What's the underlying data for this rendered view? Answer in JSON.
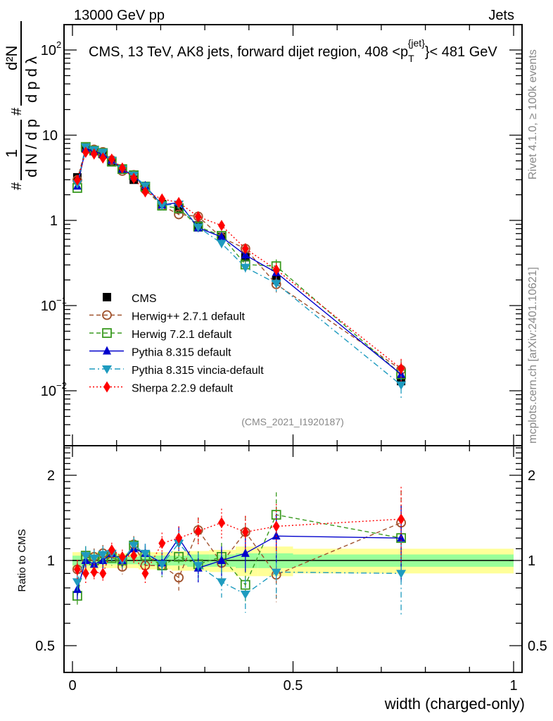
{
  "header": {
    "left": "13000 GeV pp",
    "right": "Jets"
  },
  "side_labels": {
    "rivet": "Rivet 4.1.0, ≥ 100k events",
    "mcplots": "mcplots.cern.ch [arXiv:2401.10621]"
  },
  "chart_data": {
    "type": "scatter",
    "title": "CMS, 13 TeV, AK8 jets, forward dijet region, 408 <p_T^{jet}< 481 GeV",
    "title_parts": {
      "main": "CMS, 13 TeV, AK8 jets, forward dijet region, 408 <p",
      "sub": "T",
      "sup": "{jet}",
      "tail": "}< 481 GeV"
    },
    "analysis_tag": "(CMS_2021_I1920187)",
    "xlabel": "width (charged-only)",
    "ylabel_upper": "1/# dN/dp_T # d²N/dp_T dλ",
    "ylabel_lower": "Ratio to CMS",
    "xlim": [
      -0.02,
      1.02
    ],
    "ylim_upper": [
      0.00226,
      200
    ],
    "ylim_lower": [
      0.4,
      2.54
    ],
    "y_scale": "log",
    "xticks": [
      "0",
      "0.5",
      "1"
    ],
    "yticks_upper": [
      "10²",
      "10",
      "1",
      "10⁻¹",
      "10⁻²"
    ],
    "yticks_lower": [
      "2",
      "1",
      "0.5"
    ],
    "x": [
      0.011,
      0.03,
      0.049,
      0.069,
      0.089,
      0.113,
      0.139,
      0.165,
      0.203,
      0.241,
      0.285,
      0.338,
      0.392,
      0.462,
      0.745
    ],
    "band_edges": [
      0.0,
      0.02,
      0.04,
      0.06,
      0.08,
      0.1,
      0.125,
      0.15,
      0.18,
      0.225,
      0.26,
      0.31,
      0.37,
      0.42,
      0.5,
      1.0
    ],
    "band_stat": [
      0.04,
      0.04,
      0.04,
      0.03,
      0.03,
      0.03,
      0.03,
      0.04,
      0.04,
      0.04,
      0.05,
      0.05,
      0.06,
      0.06,
      0.05
    ],
    "band_total": [
      0.07,
      0.08,
      0.07,
      0.06,
      0.06,
      0.06,
      0.06,
      0.07,
      0.07,
      0.08,
      0.08,
      0.09,
      0.12,
      0.12,
      0.1
    ],
    "legend_position": "middle-left",
    "series": [
      {
        "name": "CMS",
        "color": "#000000",
        "marker": "square",
        "line": "none",
        "values": [
          3.2,
          7.0,
          6.6,
          6.0,
          4.8,
          4.0,
          3.0,
          2.4,
          1.55,
          1.35,
          0.87,
          0.64,
          0.37,
          0.2,
          0.013
        ]
      },
      {
        "name": "Herwig++ 2.7.1 default",
        "color": "#a0522d",
        "marker": "circle-open",
        "line": "dashed",
        "ratio": [
          0.93,
          1.02,
          1.03,
          1.06,
          1.06,
          0.95,
          1.14,
          0.96,
          0.96,
          0.87,
          1.28,
          0.98,
          1.26,
          0.89,
          1.36
        ]
      },
      {
        "name": "Herwig 7.2.1 default",
        "color": "#3a9a20",
        "marker": "square-open",
        "line": "dashed",
        "ratio": [
          0.75,
          1.04,
          1.0,
          1.03,
          1.02,
          1.0,
          1.13,
          1.04,
          0.96,
          1.03,
          0.97,
          1.03,
          0.82,
          1.45,
          1.2
        ]
      },
      {
        "name": "Pythia 8.315 default",
        "color": "#0000cc",
        "marker": "triangle-up",
        "line": "solid",
        "ratio": [
          0.79,
          1.0,
          0.97,
          1.0,
          1.06,
          1.0,
          1.1,
          1.06,
          0.98,
          1.2,
          0.94,
          1.0,
          1.06,
          1.22,
          1.2
        ]
      },
      {
        "name": "Pythia 8.315 vincia-default",
        "color": "#1e9bbf",
        "marker": "triangle-down",
        "line": "dashdot",
        "ratio": [
          0.84,
          1.04,
          1.02,
          1.05,
          1.06,
          1.0,
          1.13,
          1.06,
          0.97,
          1.15,
          0.96,
          0.84,
          0.76,
          0.91,
          0.9
        ]
      },
      {
        "name": "Sherpa 2.2.9 default",
        "color": "#ff0000",
        "marker": "diamond",
        "line": "dotted",
        "ratio": [
          0.93,
          0.9,
          0.91,
          0.9,
          1.09,
          1.03,
          1.04,
          0.9,
          1.15,
          1.2,
          1.27,
          1.36,
          1.26,
          1.32,
          1.4
        ]
      }
    ],
    "ratio_errors": [
      0.08,
      0.08,
      0.07,
      0.07,
      0.06,
      0.06,
      0.07,
      0.08,
      0.09,
      0.1,
      0.11,
      0.12,
      0.14,
      0.2,
      0.3
    ]
  }
}
